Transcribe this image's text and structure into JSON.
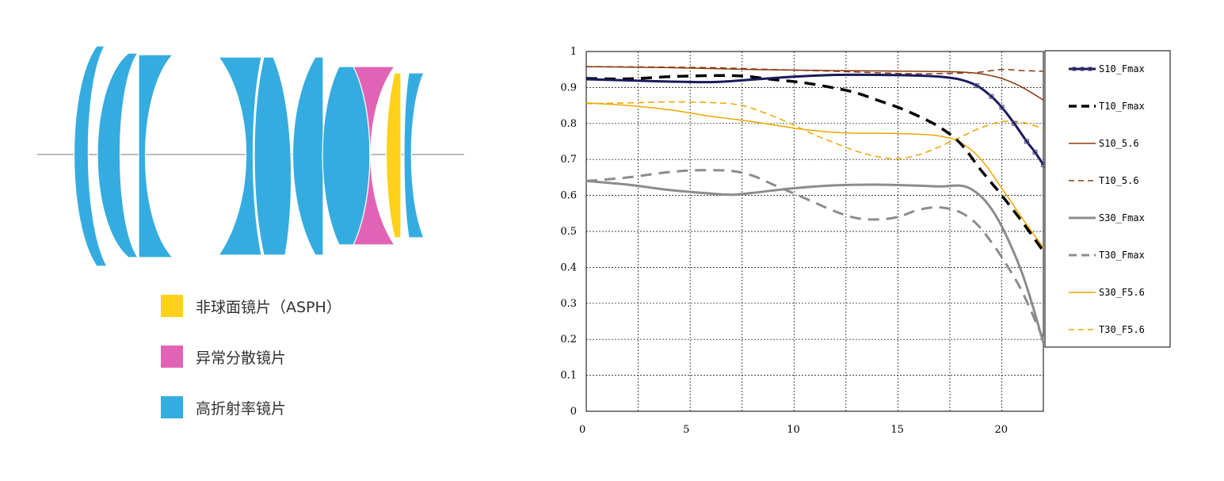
{
  "colors": {
    "high_index": "#35ACE0",
    "dispersion": "#E163B5",
    "aspherical": "#FFD11A",
    "axis_line": "#bbbbbb"
  },
  "lens_legend": [
    {
      "label": "非球面镜片（ASPH）",
      "color": "#FFD11A"
    },
    {
      "label": "异常分散镜片",
      "color": "#E163B5"
    },
    {
      "label": "高折射率镜片",
      "color": "#35ACE0"
    }
  ],
  "chart_data": {
    "type": "line",
    "title": "",
    "xlabel": "",
    "ylabel": "",
    "xlim": [
      0,
      22
    ],
    "ylim": [
      0,
      1
    ],
    "x_ticks": [
      0,
      5,
      10,
      15,
      20
    ],
    "y_ticks": [
      0,
      0.1,
      0.2,
      0.3,
      0.4,
      0.5,
      0.6,
      0.7,
      0.8,
      0.9,
      1
    ],
    "y_tick_labels": [
      "0",
      "0.1",
      "0.2",
      "0.3",
      "0.4",
      "0.5",
      "0.6",
      "0.7",
      "0.8",
      "0.9",
      "1"
    ],
    "grid": true,
    "legend_position": "right",
    "series": [
      {
        "name": "S10_Fmax",
        "color": "#1a1a5e",
        "dash": "solid",
        "width": 3,
        "markers": true,
        "points": [
          [
            0,
            0.923
          ],
          [
            3,
            0.918
          ],
          [
            6,
            0.915
          ],
          [
            8,
            0.922
          ],
          [
            10,
            0.93
          ],
          [
            12,
            0.935
          ],
          [
            14,
            0.935
          ],
          [
            16,
            0.933
          ],
          [
            17,
            0.93
          ],
          [
            18,
            0.922
          ],
          [
            18.8,
            0.905
          ],
          [
            19.5,
            0.875
          ],
          [
            20,
            0.845
          ],
          [
            20.6,
            0.8
          ],
          [
            21.2,
            0.75
          ],
          [
            21.6,
            0.72
          ],
          [
            22,
            0.685
          ]
        ]
      },
      {
        "name": "T10_Fmax",
        "color": "#000000",
        "dash": "dashed",
        "width": 3.5,
        "markers": false,
        "points": [
          [
            0,
            0.925
          ],
          [
            2,
            0.924
          ],
          [
            4,
            0.93
          ],
          [
            6,
            0.933
          ],
          [
            7.5,
            0.932
          ],
          [
            9,
            0.922
          ],
          [
            10.5,
            0.913
          ],
          [
            12,
            0.898
          ],
          [
            13,
            0.885
          ],
          [
            14,
            0.865
          ],
          [
            15,
            0.845
          ],
          [
            16,
            0.82
          ],
          [
            17,
            0.79
          ],
          [
            18,
            0.745
          ],
          [
            19,
            0.67
          ],
          [
            20,
            0.6
          ],
          [
            21,
            0.525
          ],
          [
            22,
            0.445
          ]
        ]
      },
      {
        "name": "S10_5.6",
        "color": "#8B3A0F",
        "dash": "solid",
        "width": 1.5,
        "markers": false,
        "points": [
          [
            0,
            0.958
          ],
          [
            4,
            0.955
          ],
          [
            8,
            0.95
          ],
          [
            12,
            0.947
          ],
          [
            16,
            0.945
          ],
          [
            18,
            0.943
          ],
          [
            19,
            0.938
          ],
          [
            20,
            0.925
          ],
          [
            21,
            0.9
          ],
          [
            22,
            0.865
          ]
        ]
      },
      {
        "name": "T10_5.6",
        "color": "#8B3A0F",
        "dash": "dashed",
        "width": 1.5,
        "markers": false,
        "points": [
          [
            0,
            0.958
          ],
          [
            3,
            0.957
          ],
          [
            6,
            0.955
          ],
          [
            9,
            0.95
          ],
          [
            12,
            0.945
          ],
          [
            14,
            0.941
          ],
          [
            16,
            0.938
          ],
          [
            18,
            0.94
          ],
          [
            19,
            0.943
          ],
          [
            20,
            0.95
          ],
          [
            21,
            0.947
          ],
          [
            22,
            0.945
          ]
        ]
      },
      {
        "name": "S30_Fmax",
        "color": "#8c8c8c",
        "dash": "solid",
        "width": 3,
        "markers": false,
        "points": [
          [
            0,
            0.64
          ],
          [
            2,
            0.63
          ],
          [
            4,
            0.615
          ],
          [
            6,
            0.605
          ],
          [
            7,
            0.602
          ],
          [
            8,
            0.607
          ],
          [
            10,
            0.62
          ],
          [
            12,
            0.628
          ],
          [
            14,
            0.63
          ],
          [
            16,
            0.627
          ],
          [
            17,
            0.625
          ],
          [
            18,
            0.627
          ],
          [
            18.6,
            0.615
          ],
          [
            19.2,
            0.585
          ],
          [
            19.8,
            0.535
          ],
          [
            20.4,
            0.465
          ],
          [
            21,
            0.38
          ],
          [
            21.5,
            0.29
          ],
          [
            22,
            0.19
          ]
        ]
      },
      {
        "name": "T30_Fmax",
        "color": "#8c8c8c",
        "dash": "dashed",
        "width": 3,
        "markers": false,
        "points": [
          [
            0,
            0.64
          ],
          [
            2,
            0.65
          ],
          [
            4,
            0.665
          ],
          [
            5.5,
            0.67
          ],
          [
            7,
            0.668
          ],
          [
            8,
            0.655
          ],
          [
            9,
            0.63
          ],
          [
            10,
            0.605
          ],
          [
            11,
            0.58
          ],
          [
            12,
            0.555
          ],
          [
            13,
            0.537
          ],
          [
            14,
            0.533
          ],
          [
            15,
            0.54
          ],
          [
            16,
            0.56
          ],
          [
            17,
            0.567
          ],
          [
            18,
            0.553
          ],
          [
            18.8,
            0.52
          ],
          [
            19.5,
            0.47
          ],
          [
            20.2,
            0.41
          ],
          [
            21,
            0.33
          ],
          [
            22,
            0.2
          ]
        ]
      },
      {
        "name": "S30_F5.6",
        "color": "#F0A500",
        "dash": "solid",
        "width": 1.5,
        "markers": false,
        "points": [
          [
            0,
            0.857
          ],
          [
            2,
            0.85
          ],
          [
            4,
            0.838
          ],
          [
            6,
            0.82
          ],
          [
            8,
            0.805
          ],
          [
            10,
            0.787
          ],
          [
            11,
            0.78
          ],
          [
            12,
            0.775
          ],
          [
            13,
            0.773
          ],
          [
            14,
            0.773
          ],
          [
            15,
            0.772
          ],
          [
            16,
            0.77
          ],
          [
            17,
            0.765
          ],
          [
            18,
            0.748
          ],
          [
            19,
            0.7
          ],
          [
            20,
            0.62
          ],
          [
            21,
            0.535
          ],
          [
            22,
            0.455
          ]
        ]
      },
      {
        "name": "T30_F5.6",
        "color": "#F0A500",
        "dash": "dashed",
        "width": 1.5,
        "markers": false,
        "points": [
          [
            0,
            0.855
          ],
          [
            2,
            0.857
          ],
          [
            4,
            0.86
          ],
          [
            6,
            0.858
          ],
          [
            7.5,
            0.85
          ],
          [
            9,
            0.82
          ],
          [
            10,
            0.795
          ],
          [
            11,
            0.768
          ],
          [
            12,
            0.745
          ],
          [
            13,
            0.723
          ],
          [
            14,
            0.708
          ],
          [
            15,
            0.702
          ],
          [
            16,
            0.713
          ],
          [
            17,
            0.735
          ],
          [
            18,
            0.762
          ],
          [
            19,
            0.788
          ],
          [
            20,
            0.805
          ],
          [
            21,
            0.803
          ],
          [
            22,
            0.785
          ]
        ]
      }
    ]
  }
}
